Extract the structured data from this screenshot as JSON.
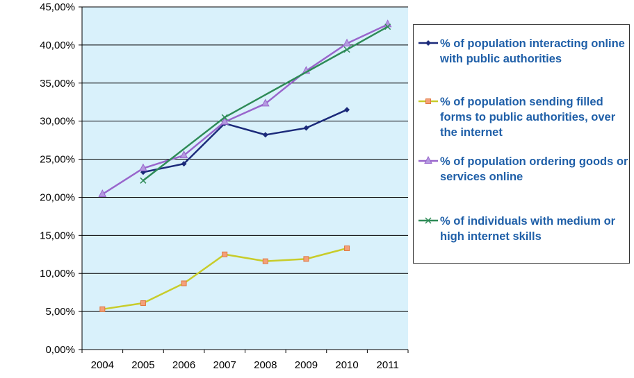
{
  "chart_data": {
    "type": "line",
    "title": "",
    "xlabel": "",
    "ylabel": "",
    "x": [
      "2004",
      "2005",
      "2006",
      "2007",
      "2008",
      "2009",
      "2010",
      "2011"
    ],
    "ylim": [
      0,
      45
    ],
    "y_ticks": [
      "0,00%",
      "5,00%",
      "10,00%",
      "15,00%",
      "20,00%",
      "25,00%",
      "30,00%",
      "35,00%",
      "40,00%",
      "45,00%"
    ],
    "grid": "horizontal",
    "legend_position": "right",
    "plot_background": "#d9f1fb",
    "series": [
      {
        "name": "% of population interacting online with public authorities",
        "color": "#1b2a7a",
        "marker": "diamond",
        "values": [
          null,
          23.3,
          24.4,
          29.7,
          28.2,
          29.1,
          31.5,
          null
        ]
      },
      {
        "name": "% of population sending filled forms to public authorities, over the internet",
        "color": "#c8cc2a",
        "marker": "square",
        "marker_fill": "#f4a07a",
        "values": [
          5.3,
          6.1,
          8.7,
          12.5,
          11.6,
          11.9,
          13.3,
          null
        ]
      },
      {
        "name": "% of population ordering goods or services online",
        "color": "#9966cc",
        "marker": "triangle",
        "marker_fill": "#b49ae0",
        "values": [
          20.4,
          23.8,
          25.5,
          29.9,
          32.3,
          36.6,
          40.2,
          42.7
        ]
      },
      {
        "name": "% of individuals with medium or high internet skills",
        "color": "#2e8b57",
        "marker": "x",
        "values": [
          null,
          22.2,
          null,
          30.5,
          null,
          null,
          39.4,
          42.4
        ]
      }
    ]
  }
}
